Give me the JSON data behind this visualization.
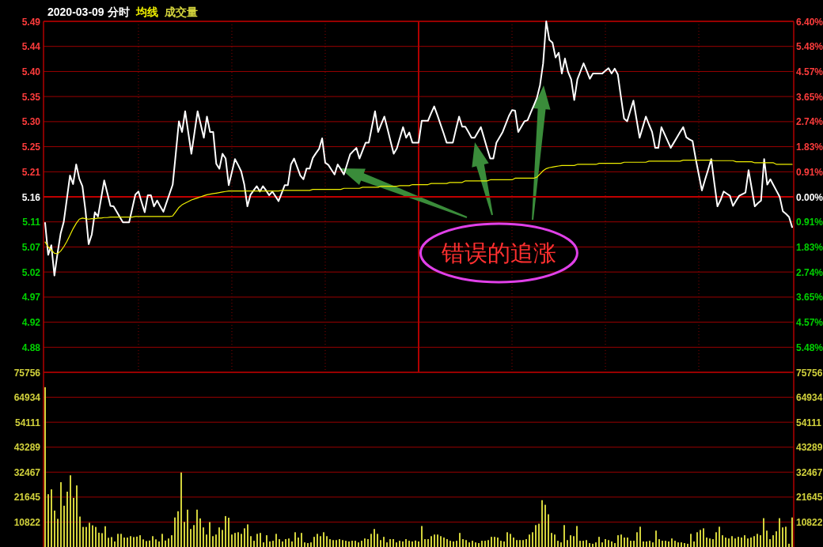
{
  "chart_data": [
    {
      "type": "line",
      "title": "2020-03-09 分时",
      "grid": true,
      "categories": [
        null,
        null,
        null,
        null,
        null,
        null,
        null,
        null,
        null,
        null,
        null,
        null,
        null,
        null,
        null,
        null,
        null,
        null,
        null,
        null,
        null,
        null,
        null,
        null,
        null,
        null,
        null,
        null,
        null,
        null,
        null,
        null,
        null,
        null,
        null,
        null,
        null,
        null,
        null,
        null,
        null,
        null,
        null,
        null,
        null,
        null,
        null,
        null,
        null,
        null,
        null,
        null,
        null,
        null,
        null,
        null,
        null,
        null,
        null,
        null,
        null,
        null,
        null,
        null,
        null,
        null,
        null,
        null,
        null,
        null,
        null,
        null,
        null,
        null,
        null,
        null,
        null,
        null,
        null,
        null,
        null,
        null,
        null,
        null,
        null,
        null,
        null,
        null,
        null,
        null,
        null,
        null,
        null,
        null,
        null,
        null,
        null,
        null,
        null,
        null,
        null,
        null,
        null,
        null,
        null,
        null,
        null,
        null,
        null,
        null,
        null,
        null,
        null,
        null,
        null,
        null,
        null,
        null,
        null,
        null,
        null,
        null,
        null,
        null,
        null,
        null,
        null,
        null,
        null,
        null,
        null,
        null,
        null,
        null,
        null,
        null,
        null,
        null,
        null,
        null,
        null,
        null,
        null,
        null,
        null,
        null,
        null,
        null,
        null,
        null,
        null,
        null,
        null,
        null,
        null,
        null,
        null,
        null,
        null,
        null,
        null,
        null,
        null,
        null,
        null,
        null,
        null,
        null,
        null,
        null,
        null,
        null,
        null,
        null,
        null,
        null,
        null,
        null,
        null,
        null,
        null,
        null,
        null,
        null,
        null,
        null,
        null,
        null,
        null,
        null,
        null,
        null,
        null,
        null,
        null,
        null,
        null,
        null,
        null,
        null,
        null,
        null,
        null,
        null,
        null,
        null,
        null,
        null,
        null,
        null,
        null,
        null,
        null,
        null,
        null,
        null,
        null,
        null,
        null,
        null,
        null,
        null,
        null,
        null,
        null,
        null,
        null,
        null,
        null,
        null,
        null,
        null,
        null,
        null,
        null,
        null,
        null,
        null,
        null,
        null,
        null
      ],
      "ylim": [
        4.83,
        5.49
      ],
      "yticks": [
        {
          "value": 5.49,
          "label": "5.49"
        },
        {
          "value": 5.4429,
          "label": "5.44"
        },
        {
          "value": 5.3957,
          "label": "5.40"
        },
        {
          "value": 5.3486,
          "label": "5.35"
        },
        {
          "value": 5.3014,
          "label": "5.30"
        },
        {
          "value": 5.2543,
          "label": "5.25"
        },
        {
          "value": 5.2071,
          "label": "5.21"
        },
        {
          "value": 5.16,
          "label": "5.16"
        },
        {
          "value": 5.1129,
          "label": "5.11"
        },
        {
          "value": 5.0657,
          "label": "5.07"
        },
        {
          "value": 5.0186,
          "label": "5.02"
        },
        {
          "value": 4.9714,
          "label": "4.97"
        },
        {
          "value": 4.9243,
          "label": "4.92"
        },
        {
          "value": 4.8771,
          "label": "4.88"
        }
      ],
      "y2lim": [
        -6.4,
        6.4
      ],
      "y2ticks": [
        {
          "value": 6.4,
          "label": "6.40%"
        },
        {
          "value": 5.48,
          "label": "5.48%"
        },
        {
          "value": 4.57,
          "label": "4.57%"
        },
        {
          "value": 3.65,
          "label": "3.65%"
        },
        {
          "value": 2.74,
          "label": "2.74%"
        },
        {
          "value": 1.83,
          "label": "1.83%"
        },
        {
          "value": 0.91,
          "label": "0.91%"
        },
        {
          "value": 0,
          "label": "0.00%"
        },
        {
          "value": -0.91,
          "label": "0.91%"
        },
        {
          "value": -1.83,
          "label": "1.83%"
        },
        {
          "value": -2.74,
          "label": "2.74%"
        },
        {
          "value": -3.65,
          "label": "3.65%"
        },
        {
          "value": -4.57,
          "label": "4.57%"
        },
        {
          "value": -5.48,
          "label": "5.48%"
        }
      ],
      "ref_lines": [
        {
          "axis": "y",
          "value": 5.16,
          "color": "#c00000"
        }
      ],
      "annotations": [
        "错误的追涨"
      ],
      "series": [
        {
          "color": "#ffffff",
          "values": [
            5.111,
            5.051,
            5.069,
            5.012,
            5.054,
            5.091,
            5.113,
            5.156,
            5.2,
            5.184,
            5.221,
            5.194,
            5.18,
            5.133,
            5.071,
            5.089,
            5.131,
            5.123,
            5.157,
            5.191,
            5.167,
            5.143,
            5.142,
            5.132,
            5.122,
            5.112,
            5.112,
            5.112,
            5.138,
            5.164,
            5.17,
            5.15,
            5.131,
            5.163,
            5.163,
            5.142,
            5.153,
            5.142,
            5.132,
            5.149,
            5.166,
            5.183,
            5.242,
            5.302,
            5.282,
            5.321,
            5.281,
            5.241,
            5.281,
            5.321,
            5.296,
            5.271,
            5.311,
            5.282,
            5.282,
            5.222,
            5.213,
            5.241,
            5.232,
            5.182,
            5.206,
            5.231,
            5.22,
            5.208,
            5.183,
            5.142,
            5.164,
            5.172,
            5.18,
            5.17,
            5.18,
            5.172,
            5.163,
            5.17,
            5.161,
            5.152,
            5.167,
            5.182,
            5.182,
            5.221,
            5.232,
            5.216,
            5.2,
            5.193,
            5.213,
            5.213,
            5.233,
            5.242,
            5.25,
            5.27,
            5.224,
            5.22,
            5.211,
            5.202,
            5.221,
            5.212,
            5.202,
            5.221,
            5.24,
            5.246,
            5.252,
            5.232,
            5.247,
            5.262,
            5.262,
            5.292,
            5.321,
            5.282,
            5.297,
            5.311,
            5.288,
            5.264,
            5.241,
            5.251,
            5.271,
            5.291,
            5.271,
            5.281,
            5.262,
            5.262,
            5.262,
            5.303,
            5.303,
            5.303,
            5.317,
            5.33,
            5.314,
            5.297,
            5.28,
            5.262,
            5.262,
            5.262,
            5.287,
            5.311,
            5.292,
            5.292,
            5.282,
            5.271,
            5.271,
            5.281,
            5.291,
            5.271,
            5.251,
            5.232,
            5.232,
            5.262,
            5.272,
            5.282,
            5.297,
            5.312,
            5.323,
            5.322,
            5.282,
            5.292,
            5.302,
            5.304,
            5.318,
            5.332,
            5.346,
            5.37,
            5.411,
            5.49,
            5.455,
            5.45,
            5.422,
            5.431,
            5.392,
            5.42,
            5.395,
            5.381,
            5.342,
            5.381,
            5.396,
            5.411,
            5.397,
            5.382,
            5.392,
            5.392,
            5.392,
            5.392,
            5.397,
            5.402,
            5.392,
            5.401,
            5.39,
            5.348,
            5.307,
            5.302,
            5.322,
            5.341,
            5.306,
            5.271,
            5.291,
            5.311,
            5.296,
            5.282,
            5.252,
            5.252,
            5.291,
            5.278,
            5.265,
            5.252,
            5.262,
            5.272,
            5.282,
            5.291,
            5.272,
            5.268,
            5.265,
            5.232,
            5.202,
            5.172,
            5.192,
            5.211,
            5.231,
            5.186,
            5.142,
            5.154,
            5.17,
            5.166,
            5.162,
            5.143,
            5.153,
            5.162,
            5.165,
            5.168,
            5.21,
            5.176,
            5.142,
            5.148,
            5.153,
            5.231,
            5.183,
            5.193,
            5.182,
            5.171,
            5.16,
            5.133,
            5.128,
            5.122,
            5.103
          ]
        },
        {
          "name": "均线",
          "color": "#f0f000",
          "values": [
            5.075,
            5.066,
            5.06,
            5.054,
            5.053,
            5.058,
            5.066,
            5.076,
            5.088,
            5.1,
            5.11,
            5.118,
            5.12,
            5.119,
            5.118,
            5.119,
            5.119,
            5.12,
            5.12,
            5.121,
            5.121,
            5.122,
            5.122,
            5.122,
            5.122,
            5.122,
            5.122,
            5.122,
            5.122,
            5.123,
            5.123,
            5.123,
            5.123,
            5.123,
            5.123,
            5.123,
            5.123,
            5.123,
            5.123,
            5.123,
            5.123,
            5.124,
            5.132,
            5.14,
            5.145,
            5.148,
            5.151,
            5.154,
            5.156,
            5.158,
            5.16,
            5.162,
            5.164,
            5.165,
            5.166,
            5.167,
            5.168,
            5.169,
            5.17,
            5.171,
            5.171,
            5.171,
            5.171,
            5.171,
            5.171,
            5.171,
            5.171,
            5.171,
            5.171,
            5.171,
            5.171,
            5.171,
            5.171,
            5.171,
            5.171,
            5.171,
            5.172,
            5.172,
            5.172,
            5.172,
            5.172,
            5.172,
            5.172,
            5.172,
            5.172,
            5.172,
            5.174,
            5.174,
            5.174,
            5.174,
            5.174,
            5.174,
            5.174,
            5.174,
            5.174,
            5.174,
            5.176,
            5.176,
            5.176,
            5.176,
            5.176,
            5.176,
            5.178,
            5.178,
            5.178,
            5.178,
            5.178,
            5.178,
            5.18,
            5.18,
            5.18,
            5.18,
            5.18,
            5.18,
            5.181,
            5.181,
            5.181,
            5.181,
            5.183,
            5.183,
            5.183,
            5.183,
            5.183,
            5.183,
            5.185,
            5.185,
            5.185,
            5.185,
            5.185,
            5.185,
            5.187,
            5.187,
            5.187,
            5.187,
            5.187,
            5.19,
            5.19,
            5.19,
            5.19,
            5.19,
            5.19,
            5.19,
            5.19,
            5.192,
            5.192,
            5.192,
            5.192,
            5.192,
            5.192,
            5.192,
            5.192,
            5.195,
            5.195,
            5.195,
            5.195,
            5.195,
            5.195,
            5.195,
            5.197,
            5.203,
            5.209,
            5.213,
            5.215,
            5.216,
            5.217,
            5.218,
            5.219,
            5.219,
            5.219,
            5.219,
            5.219,
            5.221,
            5.221,
            5.221,
            5.221,
            5.221,
            5.221,
            5.221,
            5.223,
            5.223,
            5.223,
            5.223,
            5.223,
            5.223,
            5.223,
            5.223,
            5.225,
            5.225,
            5.225,
            5.225,
            5.225,
            5.225,
            5.225,
            5.225,
            5.227,
            5.227,
            5.227,
            5.227,
            5.227,
            5.227,
            5.227,
            5.227,
            5.227,
            5.227,
            5.227,
            5.229,
            5.229,
            5.229,
            5.229,
            5.229,
            5.229,
            5.229,
            5.229,
            5.229,
            5.229,
            5.228,
            5.228,
            5.228,
            5.228,
            5.228,
            5.228,
            5.228,
            5.226,
            5.226,
            5.226,
            5.226,
            5.226,
            5.226,
            5.224,
            5.224,
            5.224,
            5.224,
            5.224,
            5.224,
            5.224,
            5.221,
            5.221,
            5.221,
            5.221,
            5.221,
            5.221
          ]
        }
      ]
    },
    {
      "type": "bar",
      "grid": "y",
      "categories": [
        null,
        null,
        null,
        null,
        null,
        null,
        null,
        null,
        null,
        null,
        null,
        null,
        null,
        null,
        null,
        null,
        null,
        null,
        null,
        null,
        null,
        null,
        null,
        null,
        null,
        null,
        null,
        null,
        null,
        null,
        null,
        null,
        null,
        null,
        null,
        null,
        null,
        null,
        null,
        null,
        null,
        null,
        null,
        null,
        null,
        null,
        null,
        null,
        null,
        null,
        null,
        null,
        null,
        null,
        null,
        null,
        null,
        null,
        null,
        null,
        null,
        null,
        null,
        null,
        null,
        null,
        null,
        null,
        null,
        null,
        null,
        null,
        null,
        null,
        null,
        null,
        null,
        null,
        null,
        null,
        null,
        null,
        null,
        null,
        null,
        null,
        null,
        null,
        null,
        null,
        null,
        null,
        null,
        null,
        null,
        null,
        null,
        null,
        null,
        null,
        null,
        null,
        null,
        null,
        null,
        null,
        null,
        null,
        null,
        null,
        null,
        null,
        null,
        null,
        null,
        null,
        null,
        null,
        null,
        null,
        null,
        null,
        null,
        null,
        null,
        null,
        null,
        null,
        null,
        null,
        null,
        null,
        null,
        null,
        null,
        null,
        null,
        null,
        null,
        null,
        null,
        null,
        null,
        null,
        null,
        null,
        null,
        null,
        null,
        null,
        null,
        null,
        null,
        null,
        null,
        null,
        null,
        null,
        null,
        null,
        null,
        null,
        null,
        null,
        null,
        null,
        null,
        null,
        null,
        null,
        null,
        null,
        null,
        null,
        null,
        null,
        null,
        null,
        null,
        null,
        null,
        null,
        null,
        null,
        null,
        null,
        null,
        null,
        null,
        null,
        null,
        null,
        null,
        null,
        null,
        null,
        null,
        null,
        null,
        null,
        null,
        null,
        null,
        null,
        null,
        null,
        null,
        null,
        null,
        null,
        null,
        null,
        null,
        null,
        null,
        null,
        null,
        null,
        null,
        null,
        null,
        null,
        null,
        null,
        null,
        null,
        null,
        null,
        null,
        null,
        null,
        null,
        null,
        null,
        null,
        null,
        null
      ],
      "ylim": [
        0,
        75756
      ],
      "yticks": [
        10822,
        21645,
        32467,
        43289,
        54111,
        64934,
        75756
      ],
      "y2lim": [
        0,
        75756
      ],
      "y2ticks": [
        10822,
        21645,
        32467,
        43289,
        54111,
        64934,
        75756
      ],
      "series": [
        {
          "name": "成交量",
          "color": "#d2d23c",
          "values": [
            69300,
            22900,
            25000,
            15800,
            12200,
            28100,
            17900,
            24000,
            31100,
            21300,
            26700,
            13200,
            8700,
            8700,
            10500,
            9400,
            8700,
            6200,
            6000,
            9000,
            4000,
            4300,
            2400,
            5700,
            5700,
            4100,
            4100,
            4700,
            4300,
            4500,
            5100,
            3300,
            2600,
            2800,
            4700,
            3300,
            2400,
            5700,
            2800,
            3700,
            5100,
            12800,
            15500,
            32300,
            10900,
            16200,
            7800,
            9500,
            16200,
            12400,
            8500,
            5400,
            10800,
            4700,
            5400,
            8500,
            7400,
            13400,
            12700,
            5400,
            6100,
            6400,
            5700,
            8100,
            9800,
            4700,
            2700,
            5700,
            6100,
            2000,
            5100,
            2400,
            2700,
            5700,
            3400,
            2400,
            3400,
            3700,
            2400,
            6400,
            4100,
            6100,
            2000,
            1700,
            2000,
            4400,
            5700,
            4700,
            6400,
            4700,
            3400,
            3000,
            3000,
            3400,
            3000,
            2700,
            2400,
            2700,
            2700,
            2000,
            2700,
            3700,
            3400,
            5700,
            7800,
            5700,
            3000,
            4400,
            2000,
            3400,
            3400,
            2000,
            2700,
            2400,
            3400,
            2700,
            2400,
            2800,
            2400,
            9100,
            3400,
            3400,
            4700,
            5400,
            5400,
            4700,
            4100,
            3400,
            2700,
            2400,
            2700,
            6100,
            3400,
            3000,
            2000,
            2700,
            2000,
            1700,
            2700,
            2700,
            3000,
            4400,
            4400,
            4100,
            2700,
            2400,
            6400,
            5700,
            4100,
            3000,
            3000,
            3000,
            3400,
            5400,
            6400,
            9500,
            10100,
            20300,
            18300,
            14200,
            6100,
            5400,
            2700,
            2000,
            9500,
            3000,
            5100,
            4700,
            9100,
            2700,
            2700,
            3000,
            1700,
            1400,
            2000,
            4400,
            2000,
            3400,
            3000,
            2400,
            1700,
            5100,
            5400,
            4100,
            4100,
            2700,
            2700,
            6400,
            8800,
            2400,
            2400,
            2700,
            2000,
            7100,
            3400,
            2700,
            2700,
            2400,
            3700,
            2700,
            2000,
            2000,
            1700,
            1400,
            5700,
            2400,
            6400,
            7400,
            8100,
            4100,
            3700,
            3400,
            6400,
            8800,
            5100,
            4100,
            3700,
            4700,
            3700,
            4400,
            4100,
            5100,
            3700,
            4100,
            4700,
            5700,
            5100,
            12500,
            7100,
            3400,
            5100,
            6800,
            12500,
            8500,
            8800,
            1400,
            12800
          ]
        }
      ]
    }
  ]
}
